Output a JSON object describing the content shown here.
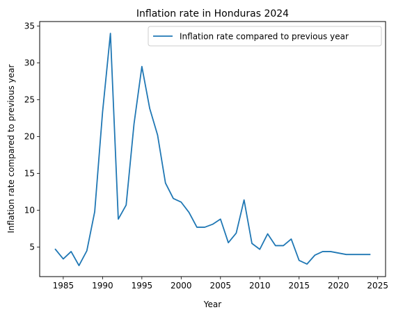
{
  "chart_data": {
    "type": "line",
    "title": "Inflation rate in Honduras 2024",
    "xlabel": "Year",
    "ylabel": "Inflation rate compared to previous year",
    "xlim": [
      1982,
      2026
    ],
    "ylim": [
      1.0,
      35.6
    ],
    "xticks": [
      1985,
      1990,
      1995,
      2000,
      2005,
      2010,
      2015,
      2020,
      2025
    ],
    "yticks": [
      5,
      10,
      15,
      20,
      25,
      30,
      35
    ],
    "grid": false,
    "legend_position": "upper right",
    "series": [
      {
        "name": "Inflation rate compared to previous year",
        "color": "#1f77b4",
        "x": [
          1984,
          1985,
          1986,
          1987,
          1988,
          1989,
          1990,
          1991,
          1992,
          1993,
          1994,
          1995,
          1996,
          1997,
          1998,
          1999,
          2000,
          2001,
          2002,
          2003,
          2004,
          2005,
          2006,
          2007,
          2008,
          2009,
          2010,
          2011,
          2012,
          2013,
          2014,
          2015,
          2016,
          2017,
          2018,
          2019,
          2020,
          2021,
          2022,
          2023,
          2024
        ],
        "y": [
          4.7,
          3.4,
          4.4,
          2.5,
          4.5,
          9.8,
          23.3,
          34.0,
          8.8,
          10.7,
          21.7,
          29.5,
          23.8,
          20.2,
          13.7,
          11.6,
          11.1,
          9.7,
          7.7,
          7.7,
          8.1,
          8.8,
          5.6,
          6.9,
          11.4,
          5.5,
          4.7,
          6.8,
          5.2,
          5.2,
          6.1,
          3.2,
          2.7,
          3.9,
          4.4,
          4.4,
          4.2,
          4.0,
          4.0,
          4.0,
          4.0
        ]
      }
    ]
  }
}
